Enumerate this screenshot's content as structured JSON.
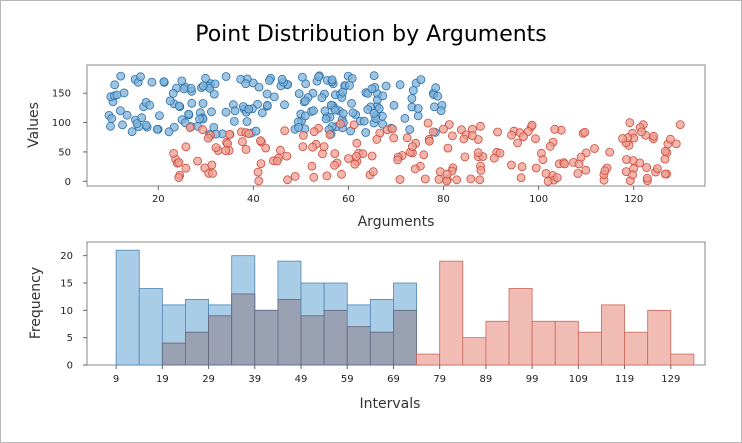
{
  "title": "Point Distribution by Arguments",
  "colors": {
    "blue_fill": "#7fb1d8",
    "blue_stroke": "#2a6fa8",
    "red_fill": "#ee9d92",
    "red_stroke": "#cc4a3c",
    "bar_blue": "#a9cde7",
    "bar_red": "#f1bcb4",
    "bar_overlap": "#9aa1b3"
  },
  "chart_data": [
    {
      "type": "scatter",
      "xlabel": "Arguments",
      "ylabel": "Values",
      "xlim": [
        5,
        135
      ],
      "ylim": [
        -8,
        198
      ],
      "xticks": [
        20,
        40,
        60,
        80,
        100,
        120
      ],
      "yticks": [
        0,
        50,
        100,
        150
      ],
      "grid": false,
      "series": [
        {
          "color": "blue",
          "x_range": [
            9,
            80
          ],
          "y_range": [
            80,
            180
          ],
          "count": 200
        },
        {
          "color": "red",
          "x_range": [
            23,
            131
          ],
          "y_range": [
            0,
            100
          ],
          "count": 200
        }
      ]
    },
    {
      "type": "bar",
      "xlabel": "Intervals",
      "ylabel": "Frequency",
      "xticks": [
        9,
        19,
        29,
        39,
        49,
        59,
        69,
        79,
        89,
        99,
        109,
        119,
        129
      ],
      "yticks": [
        0,
        5,
        10,
        15,
        20
      ],
      "ylim": [
        0,
        22.5
      ],
      "bin_start": 9,
      "bin_width": 5,
      "series": [
        {
          "color": "blue",
          "values": [
            21,
            14,
            11,
            12,
            11,
            20,
            10,
            19,
            15,
            15,
            11,
            12,
            15
          ]
        },
        {
          "color": "red",
          "values": [
            0,
            0,
            4,
            6,
            9,
            13,
            10,
            12,
            9,
            10,
            7,
            6,
            10,
            2,
            19,
            5,
            8,
            14,
            8,
            8,
            6,
            11,
            6,
            10,
            2
          ]
        }
      ]
    }
  ]
}
